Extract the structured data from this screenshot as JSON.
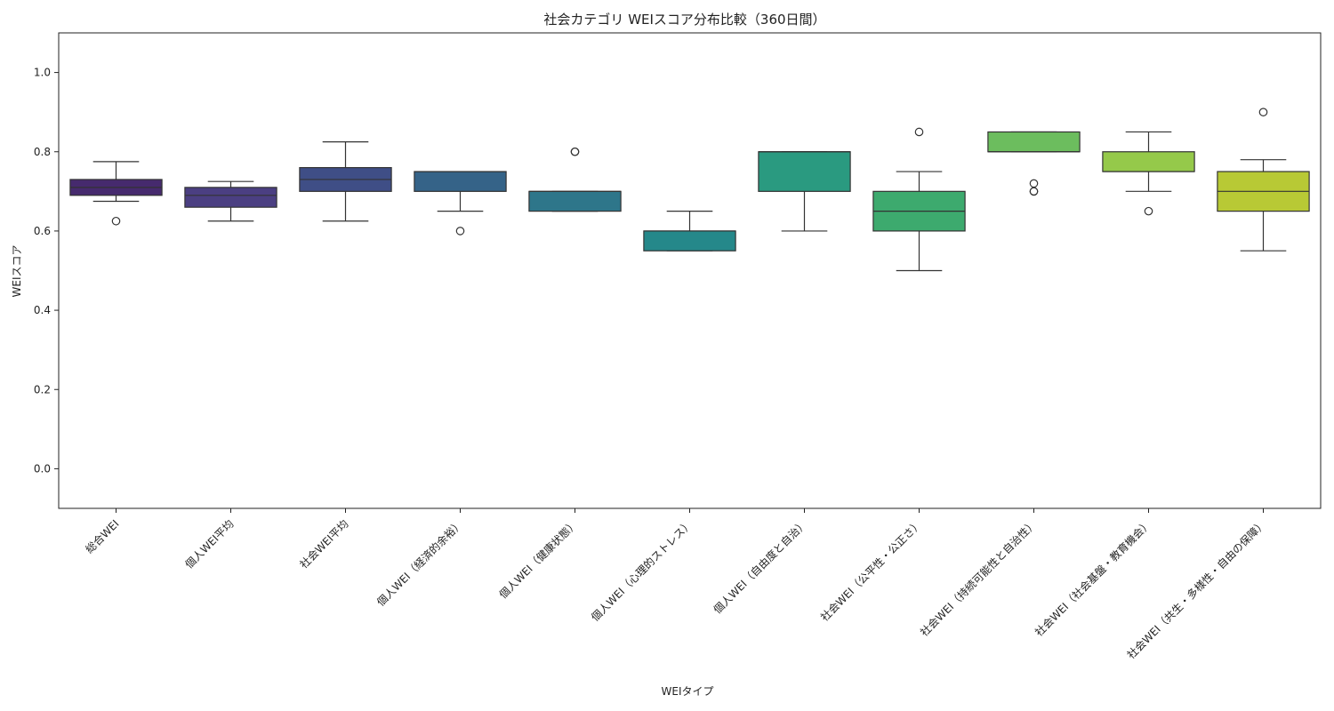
{
  "chart_data": {
    "type": "box",
    "title": "社会カテゴリ WEIスコア分布比較（360日間）",
    "xlabel": "WEIタイプ",
    "ylabel": "WEIスコア",
    "ylim": [
      -0.1,
      1.1
    ],
    "yticks": [
      0.0,
      0.2,
      0.4,
      0.6,
      0.8,
      1.0
    ],
    "ytick_labels": [
      "0.0",
      "0.2",
      "0.4",
      "0.6",
      "0.8",
      "1.0"
    ],
    "grid": false,
    "categories": [
      "総合WEI",
      "個人WEI平均",
      "社会WEI平均",
      "個人WEI（経済的余裕）",
      "個人WEI（健康状態）",
      "個人WEI（心理的ストレス）",
      "個人WEI（自由度と自治）",
      "社会WEI（公平性・公正さ）",
      "社会WEI（持続可能性と自治性）",
      "社会WEI（社会基盤・教育機会）",
      "社会WEI（共生・多様性・自由の保障）"
    ],
    "boxes": [
      {
        "whislo": 0.675,
        "q1": 0.69,
        "med": 0.71,
        "q3": 0.73,
        "whishi": 0.775,
        "fliers": [
          0.625
        ],
        "color": "#462a6e"
      },
      {
        "whislo": 0.625,
        "q1": 0.66,
        "med": 0.69,
        "q3": 0.71,
        "whishi": 0.725,
        "fliers": [],
        "color": "#4b3f82"
      },
      {
        "whislo": 0.625,
        "q1": 0.7,
        "med": 0.73,
        "q3": 0.76,
        "whishi": 0.825,
        "fliers": [],
        "color": "#3f4e86"
      },
      {
        "whislo": 0.65,
        "q1": 0.7,
        "med": 0.75,
        "q3": 0.75,
        "whishi": 0.75,
        "fliers": [
          0.6
        ],
        "color": "#356388"
      },
      {
        "whislo": 0.65,
        "q1": 0.65,
        "med": 0.7,
        "q3": 0.7,
        "whishi": 0.7,
        "fliers": [
          0.8,
          0.8
        ],
        "color": "#2e768a"
      },
      {
        "whislo": 0.55,
        "q1": 0.55,
        "med": 0.6,
        "q3": 0.6,
        "whishi": 0.65,
        "fliers": [],
        "color": "#25888a"
      },
      {
        "whislo": 0.6,
        "q1": 0.7,
        "med": 0.8,
        "q3": 0.8,
        "whishi": 0.8,
        "fliers": [],
        "color": "#2a9a80"
      },
      {
        "whislo": 0.5,
        "q1": 0.6,
        "med": 0.65,
        "q3": 0.7,
        "whishi": 0.75,
        "fliers": [
          0.85
        ],
        "color": "#3daa6e"
      },
      {
        "whislo": 0.8,
        "q1": 0.8,
        "med": 0.8,
        "q3": 0.85,
        "whishi": 0.85,
        "fliers": [
          0.72,
          0.7,
          0.7
        ],
        "color": "#6cbd5e"
      },
      {
        "whislo": 0.7,
        "q1": 0.75,
        "med": 0.75,
        "q3": 0.8,
        "whishi": 0.85,
        "fliers": [
          0.65
        ],
        "color": "#95c94a"
      },
      {
        "whislo": 0.55,
        "q1": 0.65,
        "med": 0.7,
        "q3": 0.75,
        "whishi": 0.78,
        "fliers": [
          0.9
        ],
        "color": "#b8c935"
      }
    ]
  }
}
